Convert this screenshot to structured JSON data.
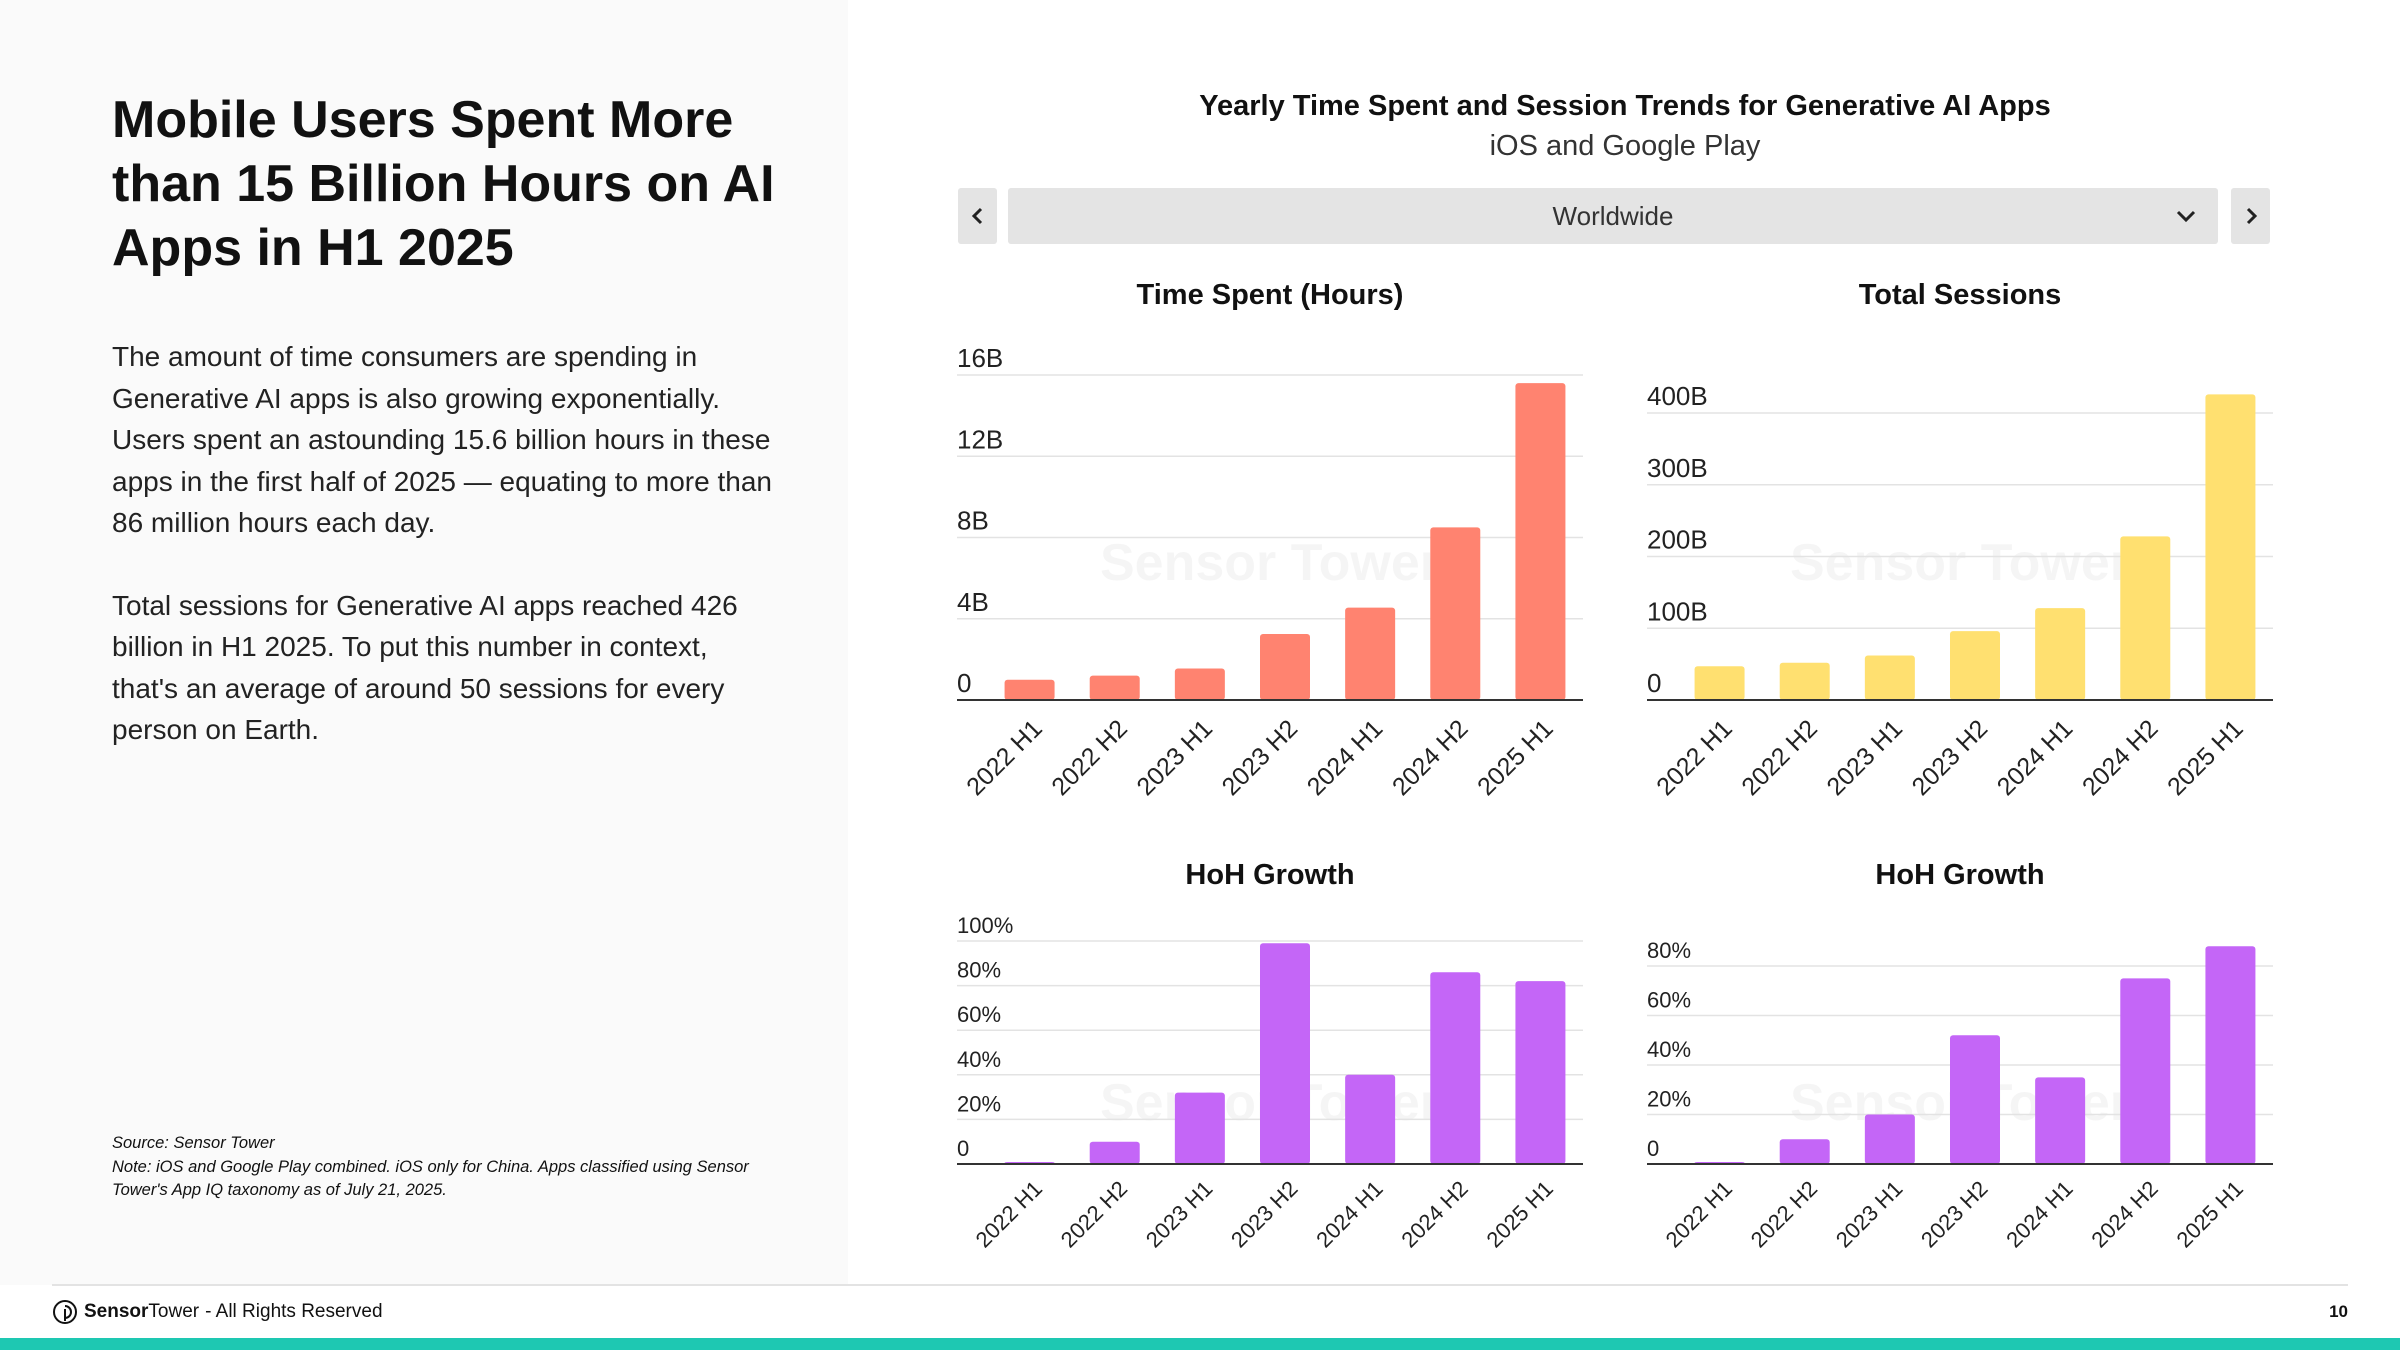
{
  "page": {
    "headline": "Mobile Users Spent More than 15 Billion Hours on AI Apps in H1 2025",
    "paragraph_1": "The amount of time consumers are spending in Generative AI apps is also growing exponentially. Users spent an astounding 15.6 billion hours in these apps in the first half of 2025 — equating to more than 86 million hours each day.",
    "paragraph_2": "Total sessions for Generative AI apps reached 426 billion in H1 2025. To put this number in context, that's an average of around 50 sessions for every person on Earth.",
    "source": "Source: Sensor Tower",
    "note": "Note: iOS and Google Play combined. iOS only for China. Apps classified using Sensor Tower's App IQ taxonomy as of July 21, 2025."
  },
  "dashboard": {
    "title": "Yearly Time Spent and Session Trends for Generative AI Apps",
    "subtitle": "iOS and Google Play",
    "region_selected": "Worldwide",
    "watermark": "Sensor Tower"
  },
  "footer": {
    "brand_bold": "Sensor",
    "brand_light": "Tower",
    "rights": "- All Rights Reserved",
    "page_number": "10"
  },
  "colors": {
    "time_spent": "#ff8370",
    "sessions": "#ffe070",
    "growth": "#c466f7",
    "accent_bar": "#1ec8b2"
  },
  "chart_data": [
    {
      "id": "time-spent",
      "type": "bar",
      "title": "Time Spent (Hours)",
      "categories": [
        "2022 H1",
        "2022 H2",
        "2023 H1",
        "2023 H2",
        "2024 H1",
        "2024 H2",
        "2025 H1"
      ],
      "values": [
        1.0,
        1.2,
        1.55,
        3.25,
        4.55,
        8.5,
        15.6
      ],
      "ylim": [
        0,
        16
      ],
      "ytick_values": [
        0,
        4,
        8,
        12,
        16
      ],
      "ytick_labels": [
        "0",
        "4B",
        "8B",
        "12B",
        "16B"
      ],
      "grid": true
    },
    {
      "id": "total-sessions",
      "type": "bar",
      "title": "Total Sessions",
      "categories": [
        "2022 H1",
        "2022 H2",
        "2023 H1",
        "2023 H2",
        "2024 H1",
        "2024 H2",
        "2025 H1"
      ],
      "values": [
        47,
        52,
        62,
        96,
        128,
        228,
        426
      ],
      "ylim": [
        0,
        400
      ],
      "ytick_values": [
        0,
        100,
        200,
        300,
        400
      ],
      "ytick_labels": [
        "0",
        "100B",
        "200B",
        "300B",
        "400B"
      ],
      "grid": true
    },
    {
      "id": "hoh-growth-time",
      "type": "bar",
      "title": "HoH Growth",
      "categories": [
        "2022 H1",
        "2022 H2",
        "2023 H1",
        "2023 H2",
        "2024 H1",
        "2024 H2",
        "2025 H1"
      ],
      "values": [
        0,
        10,
        32,
        99,
        40,
        86,
        82
      ],
      "ylim": [
        0,
        100
      ],
      "ytick_values": [
        0,
        20,
        40,
        60,
        80,
        100
      ],
      "ytick_labels": [
        "0",
        "20%",
        "40%",
        "60%",
        "80%",
        "100%"
      ],
      "grid": true
    },
    {
      "id": "hoh-growth-sessions",
      "type": "bar",
      "title": "HoH Growth",
      "categories": [
        "2022 H1",
        "2022 H2",
        "2023 H1",
        "2023 H2",
        "2024 H1",
        "2024 H2",
        "2025 H1"
      ],
      "values": [
        0,
        10,
        20,
        52,
        35,
        75,
        88
      ],
      "ylim": [
        0,
        80
      ],
      "ytick_values": [
        0,
        20,
        40,
        60,
        80
      ],
      "ytick_labels": [
        "0",
        "20%",
        "40%",
        "60%",
        "80%"
      ],
      "grid": true
    }
  ]
}
